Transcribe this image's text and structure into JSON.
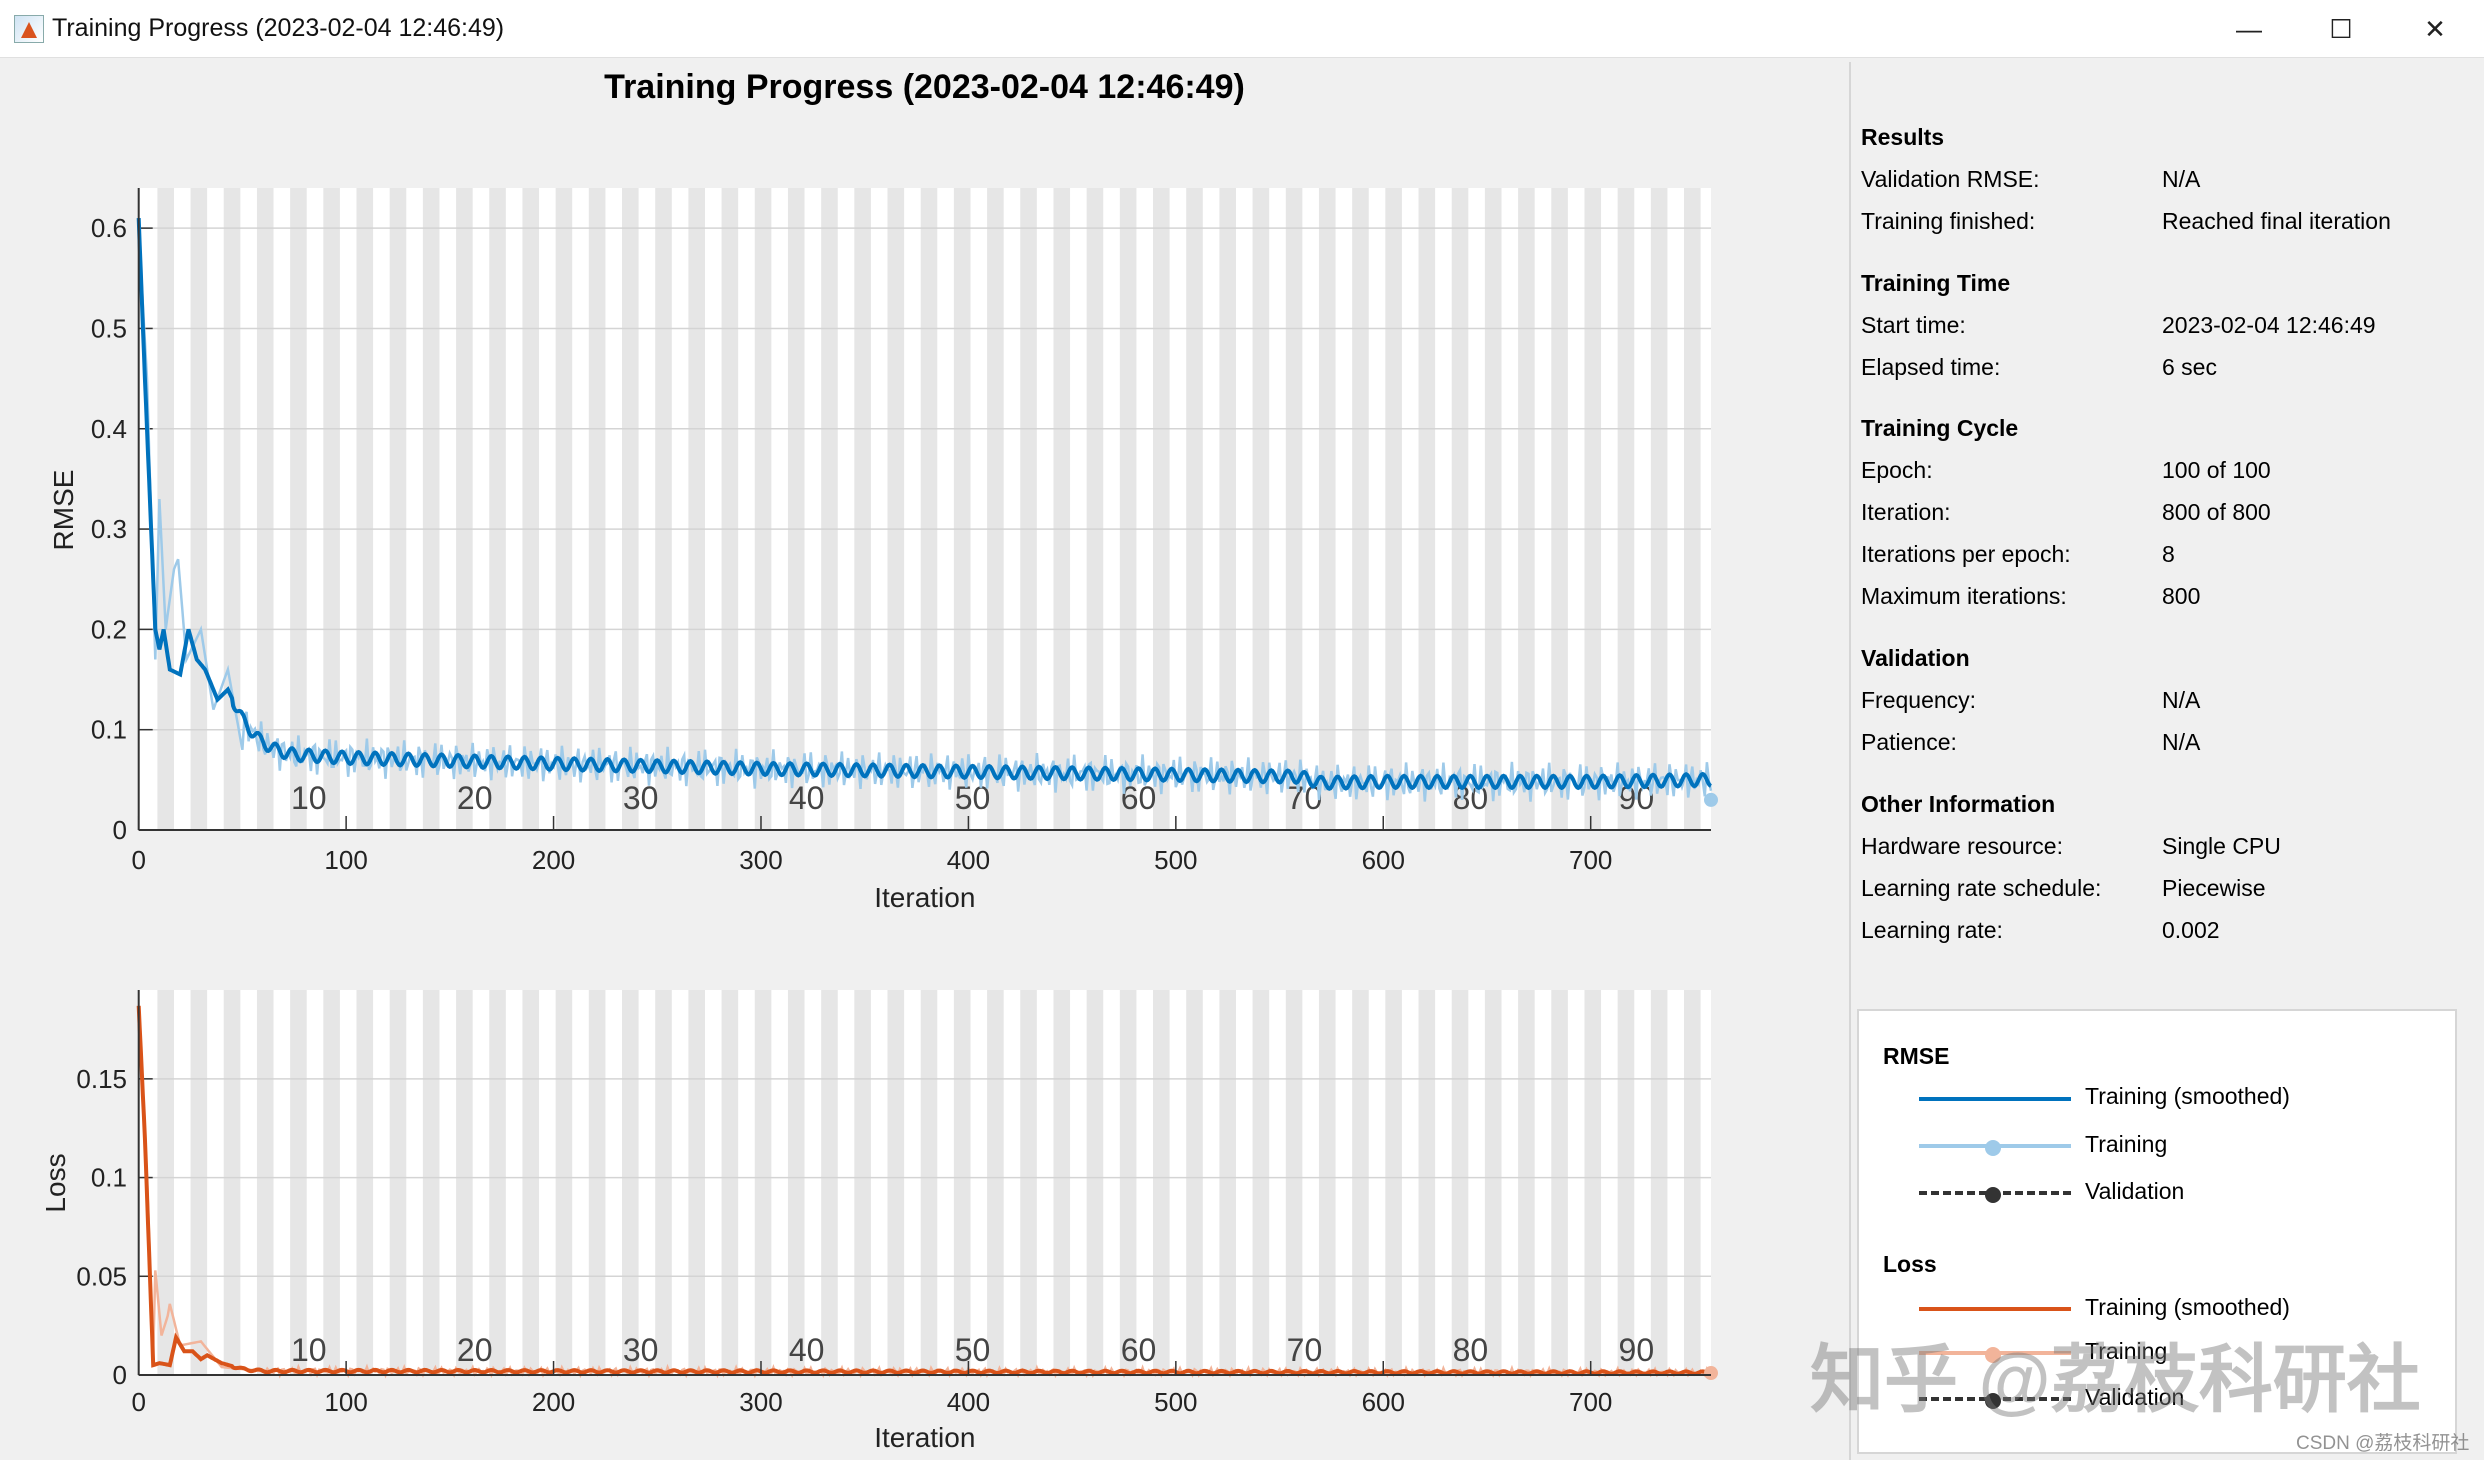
{
  "window": {
    "title": "Training Progress (2023-02-04 12:46:49)",
    "minimize": "—",
    "maximize": "☐",
    "close": "✕"
  },
  "figure_title": "Training Progress (2023-02-04 12:46:49)",
  "info": {
    "results": {
      "heading": "Results",
      "rows": [
        [
          "Validation RMSE:",
          "N/A"
        ],
        [
          "Training finished:",
          "Reached final iteration"
        ]
      ]
    },
    "time": {
      "heading": "Training Time",
      "rows": [
        [
          "Start time:",
          "2023-02-04 12:46:49"
        ],
        [
          "Elapsed time:",
          "6 sec"
        ]
      ]
    },
    "cycle": {
      "heading": "Training Cycle",
      "rows": [
        [
          "Epoch:",
          "100 of 100"
        ],
        [
          "Iteration:",
          "800 of 800"
        ],
        [
          "Iterations per epoch:",
          "8"
        ],
        [
          "Maximum iterations:",
          "800"
        ]
      ]
    },
    "validation": {
      "heading": "Validation",
      "rows": [
        [
          "Frequency:",
          "N/A"
        ],
        [
          "Patience:",
          "N/A"
        ]
      ]
    },
    "other": {
      "heading": "Other Information",
      "rows": [
        [
          "Hardware resource:",
          "Single CPU"
        ],
        [
          "Learning rate schedule:",
          "Piecewise"
        ],
        [
          "Learning rate:",
          "0.002"
        ]
      ]
    }
  },
  "legend": {
    "rmse": {
      "heading": "RMSE",
      "items": [
        "Training (smoothed)",
        "Training",
        "Validation"
      ]
    },
    "loss": {
      "heading": "Loss",
      "items": [
        "Training (smoothed)",
        "Training",
        "Validation"
      ]
    }
  },
  "watermarks": {
    "zhihu": "知乎 @荔枝科研社",
    "csdn": "CSDN @荔枝科研社"
  },
  "colors": {
    "rmse_smoothed": "#0072bd",
    "rmse_raw": "#9ecae9",
    "loss_smoothed": "#d95319",
    "loss_raw": "#f2b49a",
    "band": "#e6e6e6"
  },
  "chart_data": [
    {
      "type": "line",
      "title": "",
      "xlabel": "Iteration",
      "ylabel": "RMSE",
      "xlim": [
        0,
        758
      ],
      "ylim": [
        0,
        0.64
      ],
      "xticks": [
        0,
        100,
        200,
        300,
        400,
        500,
        600,
        700
      ],
      "yticks": [
        0,
        0.1,
        0.2,
        0.3,
        0.4,
        0.5,
        0.6
      ],
      "ytick_labels": [
        "0",
        "0.1",
        "0.2",
        "0.3",
        "0.4",
        "0.5",
        "0.6"
      ],
      "epoch_labels": [
        10,
        20,
        30,
        40,
        50,
        60,
        70,
        80,
        90
      ],
      "iterations_per_epoch": 8,
      "series": [
        {
          "name": "Training (smoothed)",
          "points": [
            [
              0,
              0.61
            ],
            [
              3,
              0.45
            ],
            [
              8,
              0.2
            ],
            [
              10,
              0.18
            ],
            [
              12,
              0.2
            ],
            [
              15,
              0.16
            ],
            [
              20,
              0.155
            ],
            [
              24,
              0.2
            ],
            [
              28,
              0.17
            ],
            [
              32,
              0.16
            ],
            [
              38,
              0.13
            ],
            [
              43,
              0.14
            ],
            [
              50,
              0.11
            ],
            [
              58,
              0.09
            ],
            [
              66,
              0.08
            ],
            [
              75,
              0.075
            ],
            [
              100,
              0.072
            ],
            [
              200,
              0.066
            ],
            [
              300,
              0.061
            ],
            [
              400,
              0.058
            ],
            [
              500,
              0.055
            ],
            [
              560,
              0.053
            ],
            [
              570,
              0.047
            ],
            [
              600,
              0.048
            ],
            [
              700,
              0.048
            ],
            [
              758,
              0.05
            ]
          ],
          "oscillation_amplitude": 0.006
        },
        {
          "name": "Training",
          "points": [
            [
              0,
              0.6
            ],
            [
              4,
              0.45
            ],
            [
              8,
              0.17
            ],
            [
              10,
              0.33
            ],
            [
              13,
              0.2
            ],
            [
              17,
              0.26
            ],
            [
              19,
              0.27
            ],
            [
              23,
              0.17
            ],
            [
              30,
              0.2
            ],
            [
              36,
              0.12
            ],
            [
              43,
              0.16
            ],
            [
              50,
              0.08
            ]
          ],
          "spike_amplitude": 0.02,
          "final_marker": [
            758,
            0.03
          ]
        }
      ]
    },
    {
      "type": "line",
      "title": "",
      "xlabel": "Iteration",
      "ylabel": "Loss",
      "xlim": [
        0,
        758
      ],
      "ylim": [
        0,
        0.195
      ],
      "xticks": [
        0,
        100,
        200,
        300,
        400,
        500,
        600,
        700
      ],
      "yticks": [
        0,
        0.05,
        0.1,
        0.15
      ],
      "ytick_labels": [
        "0",
        "0.05",
        "0.1",
        "0.15"
      ],
      "epoch_labels": [
        10,
        20,
        30,
        40,
        50,
        60,
        70,
        80,
        90
      ],
      "iterations_per_epoch": 8,
      "series": [
        {
          "name": "Training (smoothed)",
          "points": [
            [
              0,
              0.187
            ],
            [
              3,
              0.12
            ],
            [
              7,
              0.005
            ],
            [
              10,
              0.006
            ],
            [
              15,
              0.005
            ],
            [
              18,
              0.019
            ],
            [
              22,
              0.012
            ],
            [
              26,
              0.012
            ],
            [
              30,
              0.008
            ],
            [
              33,
              0.01
            ],
            [
              40,
              0.006
            ],
            [
              50,
              0.003
            ],
            [
              60,
              0.002
            ],
            [
              100,
              0.002
            ],
            [
              758,
              0.0012
            ]
          ],
          "oscillation_amplitude": 0.0006
        },
        {
          "name": "Training",
          "points": [
            [
              0,
              0.185
            ],
            [
              4,
              0.1
            ],
            [
              7,
              0.01
            ],
            [
              8,
              0.053
            ],
            [
              11,
              0.02
            ],
            [
              14,
              0.03
            ],
            [
              15,
              0.036
            ],
            [
              20,
              0.015
            ],
            [
              30,
              0.017
            ],
            [
              40,
              0.004
            ],
            [
              60,
              0.002
            ]
          ],
          "spike_amplitude": 0.002,
          "final_marker": [
            758,
            0.001
          ]
        }
      ]
    }
  ]
}
